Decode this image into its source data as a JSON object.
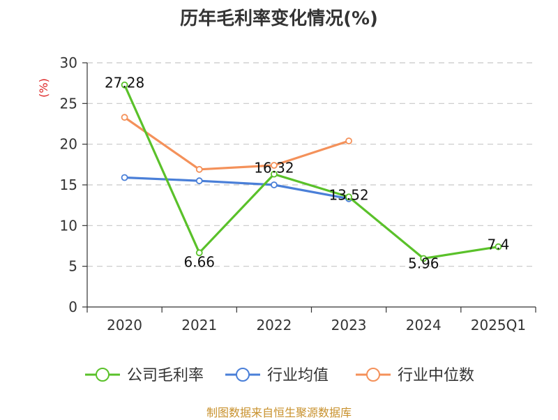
{
  "colors": {
    "公司毛利率": "#5ac12a",
    "行业均值": "#4a7fd8",
    "行业中位数": "#f4915a",
    "grid": "#c8c8c8",
    "axis": "#333333",
    "unit": "#dd2222",
    "source": "#c8912c"
  },
  "source": "制图数据来自恒生聚源数据库",
  "chart_data": {
    "type": "line",
    "title": "历年毛利率变化情况(%)",
    "ylabel": "(%)",
    "xlabel": "",
    "categories": [
      "2020",
      "2021",
      "2022",
      "2023",
      "2024",
      "2025Q1"
    ],
    "ylim": [
      0,
      30
    ],
    "yticks": [
      0,
      5,
      10,
      15,
      20,
      25,
      30
    ],
    "grid": true,
    "legend_position": "bottom",
    "series": [
      {
        "name": "公司毛利率",
        "values": [
          27.28,
          6.66,
          16.32,
          13.52,
          5.96,
          7.4
        ],
        "labels": [
          "27.28",
          "6.66",
          "16.32",
          "13.52",
          "5.96",
          "7.4"
        ]
      },
      {
        "name": "行业均值",
        "values": [
          15.9,
          15.5,
          15.0,
          13.3,
          null,
          null
        ]
      },
      {
        "name": "行业中位数",
        "values": [
          23.3,
          16.9,
          17.4,
          20.4,
          null,
          null
        ]
      }
    ]
  }
}
